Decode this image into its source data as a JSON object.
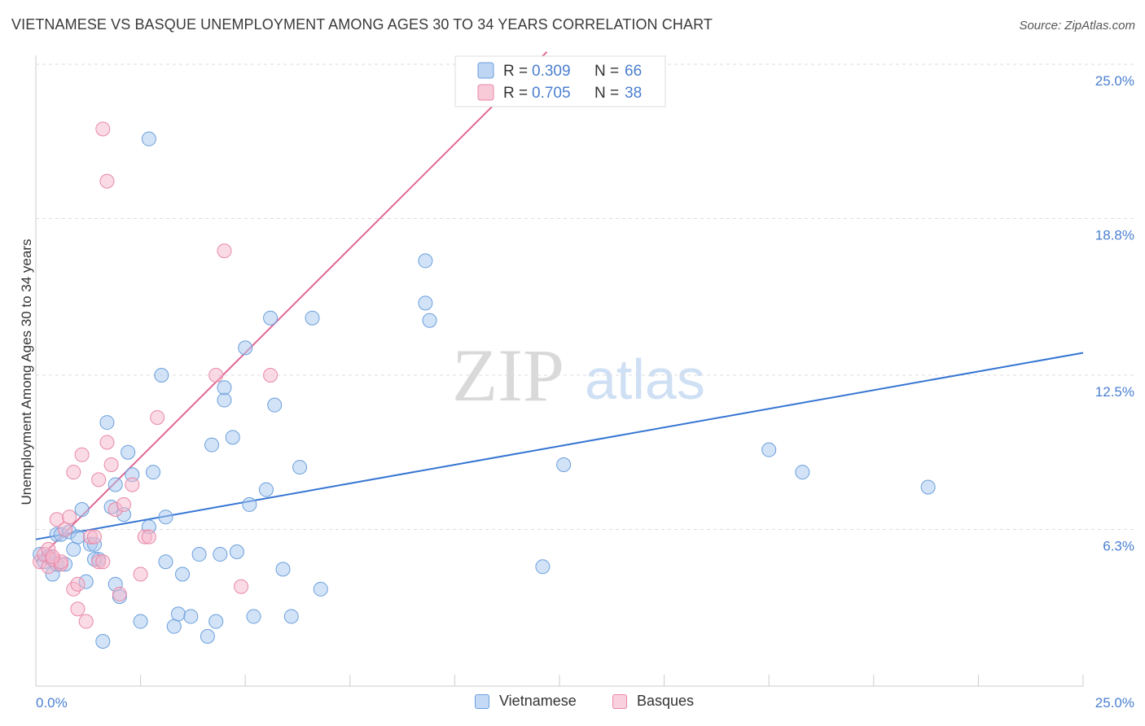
{
  "title": "VIETNAMESE VS BASQUE UNEMPLOYMENT AMONG AGES 30 TO 34 YEARS CORRELATION CHART",
  "source": "Source: ZipAtlas.com",
  "watermark": {
    "zip": "ZIP",
    "atlas": "atlas"
  },
  "colors": {
    "blue_fill": "#a8c8f0",
    "blue_stroke": "#6a9fdc",
    "blue_line": "#3575d3",
    "pink_fill": "#f5b8cb",
    "pink_stroke": "#e888a8",
    "pink_line": "#e06896",
    "accent_text": "#4a7fd0"
  },
  "legend": {
    "rows": [
      {
        "r_label": "R =",
        "r_value": "0.309",
        "n_label": "N =",
        "n_value": "66"
      },
      {
        "r_label": "R =",
        "r_value": "0.705",
        "n_label": "N =",
        "n_value": "38"
      }
    ]
  },
  "bottom_legend": {
    "items": [
      "Vietnamese",
      "Basques"
    ]
  },
  "chart_data": {
    "type": "scatter",
    "xlabel": "",
    "ylabel": "Unemployment Among Ages 30 to 34 years",
    "xlim": [
      0,
      25
    ],
    "ylim": [
      0,
      25
    ],
    "x_tick_labels": [
      "0.0%",
      "25.0%"
    ],
    "y_ticks": [
      6.3,
      12.5,
      18.8,
      25.0
    ],
    "y_tick_labels": [
      "6.3%",
      "12.5%",
      "18.8%",
      "25.0%"
    ],
    "grid": "horizontal dashed",
    "series": [
      {
        "name": "Vietnamese",
        "r": 0.309,
        "n": 66,
        "trend": {
          "x0": 0,
          "y0": 5.9,
          "x1": 25,
          "y1": 13.4
        },
        "points": [
          [
            0.1,
            5.3
          ],
          [
            0.2,
            5.0
          ],
          [
            0.3,
            5.2
          ],
          [
            0.4,
            4.5
          ],
          [
            0.5,
            6.1
          ],
          [
            0.5,
            4.9
          ],
          [
            0.6,
            6.1
          ],
          [
            0.7,
            4.9
          ],
          [
            0.8,
            6.2
          ],
          [
            0.9,
            5.5
          ],
          [
            1.0,
            6.0
          ],
          [
            1.1,
            7.1
          ],
          [
            1.2,
            4.2
          ],
          [
            1.3,
            5.7
          ],
          [
            1.4,
            5.7
          ],
          [
            1.5,
            5.1
          ],
          [
            1.6,
            1.8
          ],
          [
            1.7,
            10.6
          ],
          [
            1.8,
            7.2
          ],
          [
            1.9,
            8.1
          ],
          [
            1.9,
            4.1
          ],
          [
            2.0,
            3.6
          ],
          [
            2.1,
            6.9
          ],
          [
            2.2,
            9.4
          ],
          [
            2.3,
            8.5
          ],
          [
            2.5,
            2.6
          ],
          [
            2.7,
            6.4
          ],
          [
            2.7,
            22.0
          ],
          [
            2.8,
            8.6
          ],
          [
            3.0,
            12.5
          ],
          [
            3.1,
            5.0
          ],
          [
            3.1,
            6.8
          ],
          [
            3.3,
            2.4
          ],
          [
            3.4,
            2.9
          ],
          [
            3.5,
            4.5
          ],
          [
            3.7,
            2.8
          ],
          [
            3.9,
            5.3
          ],
          [
            4.1,
            2.0
          ],
          [
            4.2,
            9.7
          ],
          [
            4.3,
            2.6
          ],
          [
            4.4,
            5.3
          ],
          [
            4.5,
            11.5
          ],
          [
            4.5,
            12.0
          ],
          [
            4.7,
            10.0
          ],
          [
            4.8,
            5.4
          ],
          [
            5.0,
            13.6
          ],
          [
            5.1,
            7.3
          ],
          [
            5.2,
            2.8
          ],
          [
            5.5,
            7.9
          ],
          [
            5.6,
            14.8
          ],
          [
            5.7,
            11.3
          ],
          [
            5.9,
            4.7
          ],
          [
            6.1,
            2.8
          ],
          [
            6.3,
            8.8
          ],
          [
            6.6,
            14.8
          ],
          [
            6.8,
            3.9
          ],
          [
            9.3,
            15.4
          ],
          [
            9.3,
            17.1
          ],
          [
            9.4,
            14.7
          ],
          [
            12.1,
            4.8
          ],
          [
            12.6,
            8.9
          ],
          [
            17.5,
            9.5
          ],
          [
            18.3,
            8.6
          ],
          [
            21.3,
            8.0
          ],
          [
            0.3,
            5.2
          ],
          [
            1.4,
            5.1
          ]
        ]
      },
      {
        "name": "Basques",
        "r": 0.705,
        "n": 38,
        "trend": {
          "x0": 0,
          "y0": 5.0,
          "x1": 12.2,
          "y1": 25.5
        },
        "points": [
          [
            0.1,
            5.0
          ],
          [
            0.2,
            5.3
          ],
          [
            0.3,
            5.5
          ],
          [
            0.3,
            4.8
          ],
          [
            0.4,
            5.1
          ],
          [
            0.5,
            6.7
          ],
          [
            0.6,
            4.9
          ],
          [
            0.6,
            5.0
          ],
          [
            0.7,
            6.3
          ],
          [
            0.8,
            6.8
          ],
          [
            0.9,
            3.9
          ],
          [
            0.9,
            8.6
          ],
          [
            1.0,
            3.1
          ],
          [
            1.0,
            4.1
          ],
          [
            1.1,
            9.3
          ],
          [
            1.2,
            2.6
          ],
          [
            1.3,
            6.0
          ],
          [
            1.4,
            6.0
          ],
          [
            1.5,
            8.3
          ],
          [
            1.5,
            5.0
          ],
          [
            1.6,
            22.4
          ],
          [
            1.7,
            9.8
          ],
          [
            1.7,
            20.3
          ],
          [
            1.8,
            8.9
          ],
          [
            1.9,
            7.1
          ],
          [
            2.0,
            3.7
          ],
          [
            2.1,
            7.3
          ],
          [
            2.3,
            8.1
          ],
          [
            2.5,
            4.5
          ],
          [
            2.6,
            6.0
          ],
          [
            2.7,
            6.0
          ],
          [
            2.9,
            10.8
          ],
          [
            4.3,
            12.5
          ],
          [
            4.5,
            17.5
          ],
          [
            4.9,
            4.0
          ],
          [
            5.6,
            12.5
          ],
          [
            0.4,
            5.2
          ],
          [
            1.6,
            5.0
          ]
        ]
      }
    ]
  }
}
